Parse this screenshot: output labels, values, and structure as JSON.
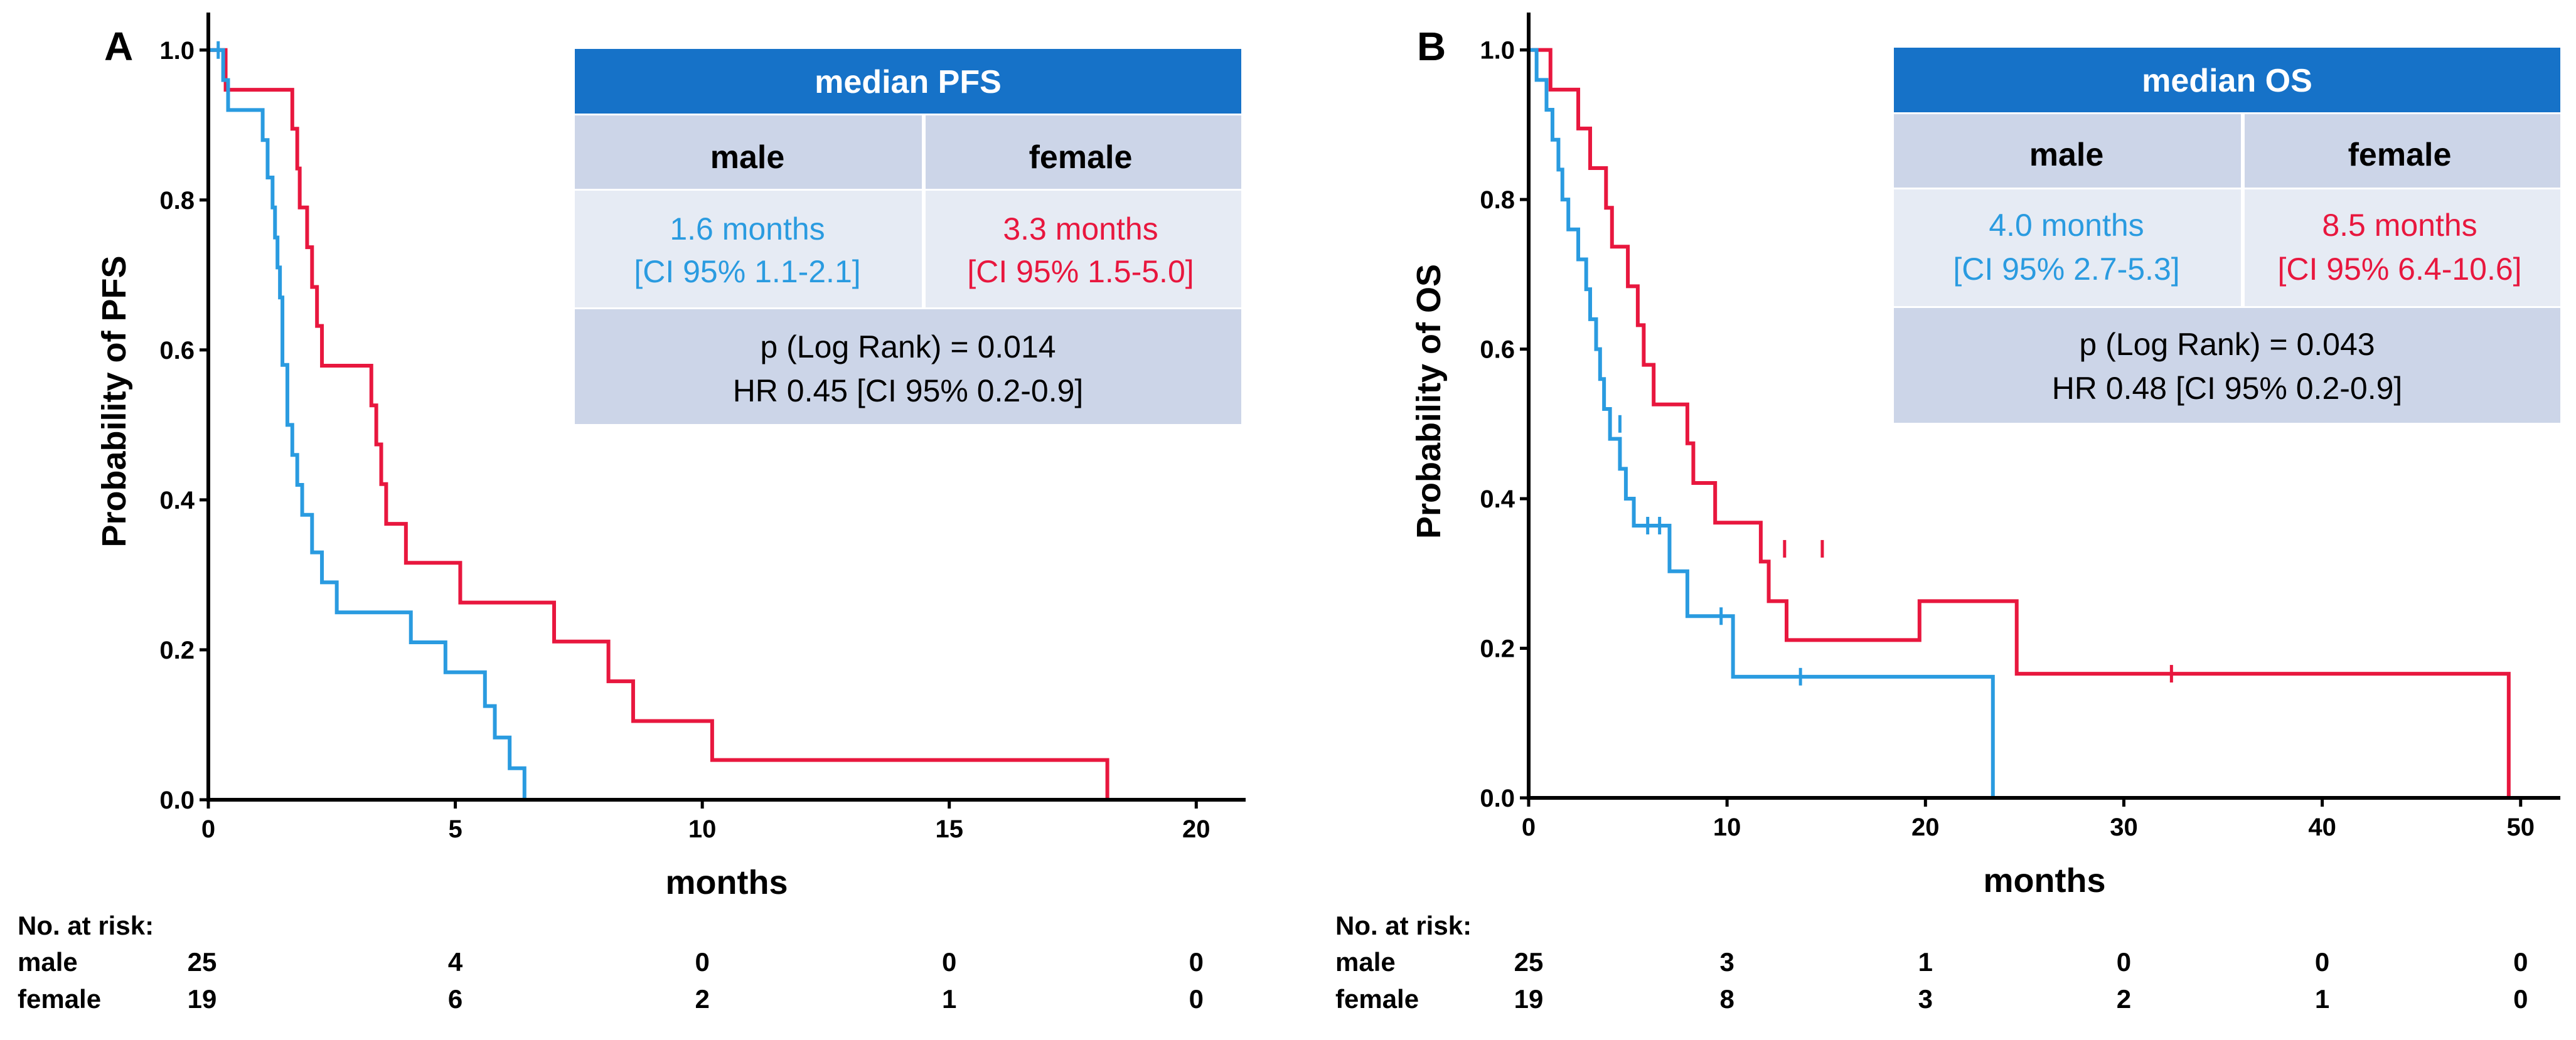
{
  "colors": {
    "male": "#2a9be0",
    "female": "#e8173e",
    "table_header": "#1672c8",
    "table_mid": "#ccd5e8",
    "table_light": "#e6ebf4"
  },
  "chart_data": [
    {
      "type": "line",
      "panel_label": "A",
      "title": "",
      "xlabel": "months",
      "ylabel": "Probability of PFS",
      "xlim": [
        0,
        21
      ],
      "ylim": [
        0,
        1.05
      ],
      "x_ticks": [
        0,
        5,
        10,
        15,
        20
      ],
      "y_ticks": [
        "0.0",
        "0.2",
        "0.4",
        "0.6",
        "0.8",
        "1.0"
      ],
      "series": [
        {
          "name": "male",
          "steps": [
            [
              0,
              1.0
            ],
            [
              0.3,
              0.96
            ],
            [
              0.4,
              0.92
            ],
            [
              1.1,
              0.88
            ],
            [
              1.2,
              0.83
            ],
            [
              1.3,
              0.79
            ],
            [
              1.35,
              0.75
            ],
            [
              1.4,
              0.71
            ],
            [
              1.45,
              0.67
            ],
            [
              1.5,
              0.58
            ],
            [
              1.6,
              0.5
            ],
            [
              1.7,
              0.46
            ],
            [
              1.8,
              0.42
            ],
            [
              1.9,
              0.38
            ],
            [
              2.1,
              0.33
            ],
            [
              2.3,
              0.29
            ],
            [
              2.6,
              0.25
            ],
            [
              4.1,
              0.21
            ],
            [
              4.8,
              0.17
            ],
            [
              5.6,
              0.125
            ],
            [
              5.8,
              0.083
            ],
            [
              6.1,
              0.042
            ],
            [
              6.4,
              0.0
            ]
          ],
          "end": 6.4,
          "censored": [
            [
              0.2,
              1.0
            ]
          ]
        },
        {
          "name": "female",
          "steps": [
            [
              0,
              1.0
            ],
            [
              0.35,
              0.947
            ],
            [
              1.7,
              0.895
            ],
            [
              1.8,
              0.842
            ],
            [
              1.85,
              0.79
            ],
            [
              2.0,
              0.737
            ],
            [
              2.1,
              0.684
            ],
            [
              2.2,
              0.632
            ],
            [
              2.3,
              0.579
            ],
            [
              3.3,
              0.526
            ],
            [
              3.4,
              0.474
            ],
            [
              3.5,
              0.421
            ],
            [
              3.6,
              0.368
            ],
            [
              4.0,
              0.316
            ],
            [
              5.1,
              0.263
            ],
            [
              7.0,
              0.211
            ],
            [
              8.1,
              0.158
            ],
            [
              8.6,
              0.105
            ],
            [
              10.2,
              0.053
            ],
            [
              18.2,
              0.0
            ]
          ],
          "end": 18.2,
          "censored": []
        }
      ],
      "table": {
        "title": "median PFS",
        "col_male": "male",
        "col_female": "female",
        "male_median": "1.6 months",
        "male_ci": "[CI 95% 1.1-2.1]",
        "female_median": "3.3 months",
        "female_ci": "[CI 95% 1.5-5.0]",
        "p_text": "p (Log Rank) = 0.014",
        "hr_text": "HR 0.45 [CI 95% 0.2-0.9]"
      },
      "at_risk": {
        "title": "No. at risk:",
        "rows": [
          {
            "label": "male",
            "values": [
              "25",
              "4",
              "0",
              "0",
              "0"
            ]
          },
          {
            "label": "female",
            "values": [
              "19",
              "6",
              "2",
              "1",
              "0"
            ]
          }
        ]
      }
    },
    {
      "type": "line",
      "panel_label": "B",
      "title": "",
      "xlabel": "months",
      "ylabel": "Probability of OS",
      "xlim": [
        0,
        52
      ],
      "ylim": [
        0,
        1.05
      ],
      "x_ticks": [
        0,
        10,
        20,
        30,
        40,
        50
      ],
      "y_ticks": [
        "0.0",
        "0.2",
        "0.4",
        "0.6",
        "0.8",
        "1.0"
      ],
      "series": [
        {
          "name": "male",
          "steps": [
            [
              0,
              1.0
            ],
            [
              0.4,
              0.96
            ],
            [
              0.9,
              0.92
            ],
            [
              1.2,
              0.88
            ],
            [
              1.5,
              0.84
            ],
            [
              1.7,
              0.8
            ],
            [
              2.0,
              0.76
            ],
            [
              2.5,
              0.72
            ],
            [
              2.9,
              0.68
            ],
            [
              3.1,
              0.64
            ],
            [
              3.4,
              0.6
            ],
            [
              3.6,
              0.56
            ],
            [
              3.8,
              0.52
            ],
            [
              4.1,
              0.48
            ],
            [
              4.6,
              0.44
            ],
            [
              4.9,
              0.4
            ],
            [
              5.3,
              0.364
            ],
            [
              7.1,
              0.303
            ],
            [
              8.0,
              0.243
            ],
            [
              10.3,
              0.162
            ],
            [
              23.4,
              0.0
            ]
          ],
          "end": 23.4,
          "censored": [
            [
              4.6,
              0.5
            ],
            [
              6.0,
              0.364
            ],
            [
              6.6,
              0.364
            ],
            [
              9.7,
              0.243
            ],
            [
              13.7,
              0.162
            ]
          ]
        },
        {
          "name": "female",
          "steps": [
            [
              0,
              1.0
            ],
            [
              1.1,
              0.947
            ],
            [
              2.5,
              0.895
            ],
            [
              3.1,
              0.842
            ],
            [
              3.9,
              0.789
            ],
            [
              4.2,
              0.737
            ],
            [
              5.0,
              0.684
            ],
            [
              5.5,
              0.632
            ],
            [
              5.8,
              0.579
            ],
            [
              6.3,
              0.526
            ],
            [
              8.0,
              0.474
            ],
            [
              8.3,
              0.421
            ],
            [
              9.4,
              0.368
            ],
            [
              11.7,
              0.316
            ],
            [
              12.1,
              0.263
            ],
            [
              13.0,
              0.211
            ],
            [
              19.7,
              0.263
            ],
            [
              24.6,
              0.166
            ],
            [
              49.4,
              0.0
            ]
          ],
          "end": 49.4,
          "censored": [
            [
              12.9,
              0.333
            ],
            [
              14.8,
              0.333
            ],
            [
              32.4,
              0.166
            ]
          ]
        }
      ],
      "table": {
        "title": "median OS",
        "col_male": "male",
        "col_female": "female",
        "male_median": "4.0 months",
        "male_ci": "[CI 95% 2.7-5.3]",
        "female_median": "8.5 months",
        "female_ci": "[CI 95% 6.4-10.6]",
        "p_text": "p (Log Rank) = 0.043",
        "hr_text": "HR 0.48 [CI 95% 0.2-0.9]"
      },
      "at_risk": {
        "title": "No. at risk:",
        "rows": [
          {
            "label": "male",
            "values": [
              "25",
              "3",
              "1",
              "0",
              "0",
              "0"
            ]
          },
          {
            "label": "female",
            "values": [
              "19",
              "8",
              "3",
              "2",
              "1",
              "0"
            ]
          }
        ]
      }
    }
  ]
}
